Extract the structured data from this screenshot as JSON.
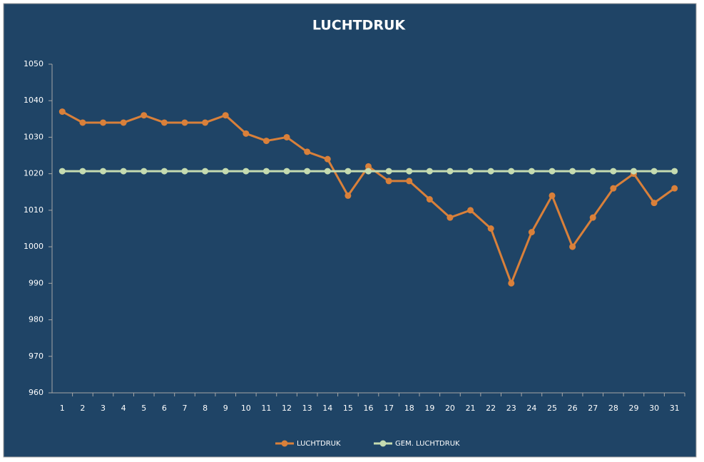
{
  "chart_data": {
    "type": "line",
    "title": "LUCHTDRUK",
    "categories": [
      1,
      2,
      3,
      4,
      5,
      6,
      7,
      8,
      9,
      10,
      11,
      12,
      13,
      14,
      15,
      16,
      17,
      18,
      19,
      20,
      21,
      22,
      23,
      24,
      25,
      26,
      27,
      28,
      29,
      30,
      31
    ],
    "series": [
      {
        "name": "LUCHTDRUK",
        "color": "#d9803a",
        "values": [
          1037,
          1034,
          1034,
          1034,
          1036,
          1034,
          1034,
          1034,
          1036,
          1031,
          1029,
          1030,
          1026,
          1024,
          1014,
          1022,
          1018,
          1018,
          1013,
          1008,
          1010,
          1005,
          990,
          1004,
          1014,
          1000,
          1008,
          1016,
          1020,
          1012,
          1016
        ]
      },
      {
        "name": "GEM. LUCHTDRUK",
        "color": "#c5dbb0",
        "values": [
          1020.7,
          1020.7,
          1020.7,
          1020.7,
          1020.7,
          1020.7,
          1020.7,
          1020.7,
          1020.7,
          1020.7,
          1020.7,
          1020.7,
          1020.7,
          1020.7,
          1020.7,
          1020.7,
          1020.7,
          1020.7,
          1020.7,
          1020.7,
          1020.7,
          1020.7,
          1020.7,
          1020.7,
          1020.7,
          1020.7,
          1020.7,
          1020.7,
          1020.7,
          1020.7,
          1020.7
        ]
      }
    ],
    "ylim": [
      960,
      1050
    ],
    "yticks": [
      960,
      970,
      980,
      990,
      1000,
      1010,
      1020,
      1030,
      1040,
      1050
    ],
    "grid": false,
    "legend": "bottom"
  }
}
